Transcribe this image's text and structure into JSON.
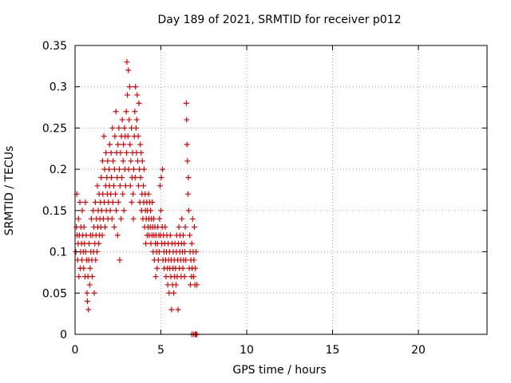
{
  "chart_data": {
    "type": "scatter",
    "title": "Day 189 of 2021, SRMTID for receiver p012",
    "xlabel": "GPS time / hours",
    "ylabel": "SRMTID / TECUs",
    "xlim": [
      0,
      24
    ],
    "ylim": [
      0,
      0.35
    ],
    "xticks": [
      0,
      5,
      10,
      15,
      20
    ],
    "xtick_labels": [
      "0",
      "5",
      "10",
      "15",
      "20"
    ],
    "yticks": [
      0,
      0.05,
      0.1,
      0.15,
      0.2,
      0.25,
      0.3,
      0.35
    ],
    "ytick_labels": [
      "0",
      "0.05",
      "0.1",
      "0.15",
      "0.2",
      "0.25",
      "0.3",
      "0.35"
    ],
    "grid": true,
    "marker": "+",
    "color": "#e00000",
    "series": [
      {
        "name": "SRMTID",
        "points": [
          [
            0.05,
            0.1
          ],
          [
            0.08,
            0.13
          ],
          [
            0.1,
            0.17
          ],
          [
            0.12,
            0.12
          ],
          [
            0.15,
            0.09
          ],
          [
            0.18,
            0.11
          ],
          [
            0.2,
            0.14
          ],
          [
            0.22,
            0.07
          ],
          [
            0.25,
            0.12
          ],
          [
            0.28,
            0.16
          ],
          [
            0.3,
            0.08
          ],
          [
            0.32,
            0.1
          ],
          [
            0.35,
            0.13
          ],
          [
            0.38,
            0.11
          ],
          [
            0.4,
            0.09
          ],
          [
            0.42,
            0.15
          ],
          [
            0.45,
            0.12
          ],
          [
            0.48,
            0.1
          ],
          [
            0.5,
            0.08
          ],
          [
            0.52,
            0.13
          ],
          [
            0.55,
            0.11
          ],
          [
            0.58,
            0.07
          ],
          [
            0.6,
            0.16
          ],
          [
            0.62,
            0.1
          ],
          [
            0.65,
            0.12
          ],
          [
            0.68,
            0.09
          ],
          [
            0.7,
            0.05
          ],
          [
            0.72,
            0.04
          ],
          [
            0.75,
            0.07
          ],
          [
            0.78,
            0.03
          ],
          [
            0.8,
            0.09
          ],
          [
            0.82,
            0.11
          ],
          [
            0.85,
            0.06
          ],
          [
            0.88,
            0.08
          ],
          [
            0.9,
            0.12
          ],
          [
            0.92,
            0.1
          ],
          [
            0.95,
            0.14
          ],
          [
            0.98,
            0.09
          ],
          [
            1.0,
            0.07
          ],
          [
            1.02,
            0.12
          ],
          [
            1.05,
            0.15
          ],
          [
            1.08,
            0.1
          ],
          [
            1.1,
            0.13
          ],
          [
            1.12,
            0.05
          ],
          [
            1.15,
            0.11
          ],
          [
            1.18,
            0.16
          ],
          [
            1.2,
            0.09
          ],
          [
            1.22,
            0.12
          ],
          [
            1.25,
            0.14
          ],
          [
            1.28,
            0.1
          ],
          [
            1.3,
            0.18
          ],
          [
            1.32,
            0.13
          ],
          [
            1.35,
            0.15
          ],
          [
            1.38,
            0.11
          ],
          [
            1.4,
            0.17
          ],
          [
            1.42,
            0.12
          ],
          [
            1.45,
            0.14
          ],
          [
            1.48,
            0.16
          ],
          [
            1.5,
            0.13
          ],
          [
            1.52,
            0.19
          ],
          [
            1.55,
            0.15
          ],
          [
            1.58,
            0.12
          ],
          [
            1.6,
            0.21
          ],
          [
            1.62,
            0.17
          ],
          [
            1.65,
            0.14
          ],
          [
            1.68,
            0.24
          ],
          [
            1.7,
            0.16
          ],
          [
            1.72,
            0.2
          ],
          [
            1.75,
            0.13
          ],
          [
            1.78,
            0.18
          ],
          [
            1.8,
            0.22
          ],
          [
            1.82,
            0.15
          ],
          [
            1.85,
            0.19
          ],
          [
            1.88,
            0.17
          ],
          [
            1.9,
            0.21
          ],
          [
            1.92,
            0.14
          ],
          [
            1.95,
            0.16
          ],
          [
            1.98,
            0.2
          ],
          [
            2.0,
            0.18
          ],
          [
            2.02,
            0.23
          ],
          [
            2.05,
            0.15
          ],
          [
            2.08,
            0.17
          ],
          [
            2.1,
            0.22
          ],
          [
            2.12,
            0.19
          ],
          [
            2.15,
            0.14
          ],
          [
            2.18,
            0.25
          ],
          [
            2.2,
            0.16
          ],
          [
            2.22,
            0.21
          ],
          [
            2.25,
            0.18
          ],
          [
            2.28,
            0.13
          ],
          [
            2.3,
            0.2
          ],
          [
            2.32,
            0.24
          ],
          [
            2.35,
            0.17
          ],
          [
            2.38,
            0.27
          ],
          [
            2.4,
            0.15
          ],
          [
            2.42,
            0.22
          ],
          [
            2.45,
            0.19
          ],
          [
            2.48,
            0.12
          ],
          [
            2.5,
            0.23
          ],
          [
            2.52,
            0.16
          ],
          [
            2.55,
            0.25
          ],
          [
            2.58,
            0.2
          ],
          [
            2.6,
            0.09
          ],
          [
            2.62,
            0.18
          ],
          [
            2.65,
            0.22
          ],
          [
            2.68,
            0.14
          ],
          [
            2.7,
            0.24
          ],
          [
            2.72,
            0.19
          ],
          [
            2.75,
            0.26
          ],
          [
            2.78,
            0.17
          ],
          [
            2.8,
            0.21
          ],
          [
            2.82,
            0.23
          ],
          [
            2.85,
            0.15
          ],
          [
            2.88,
            0.25
          ],
          [
            2.9,
            0.2
          ],
          [
            2.92,
            0.24
          ],
          [
            2.95,
            0.18
          ],
          [
            2.98,
            0.27
          ],
          [
            3.0,
            0.22
          ],
          [
            3.02,
            0.33
          ],
          [
            3.05,
            0.29
          ],
          [
            3.08,
            0.24
          ],
          [
            3.1,
            0.32
          ],
          [
            3.12,
            0.2
          ],
          [
            3.15,
            0.26
          ],
          [
            3.18,
            0.3
          ],
          [
            3.2,
            0.23
          ],
          [
            3.22,
            0.18
          ],
          [
            3.25,
            0.21
          ],
          [
            3.28,
            0.25
          ],
          [
            3.3,
            0.16
          ],
          [
            3.32,
            0.19
          ],
          [
            3.35,
            0.22
          ],
          [
            3.38,
            0.17
          ],
          [
            3.4,
            0.14
          ],
          [
            3.42,
            0.2
          ],
          [
            3.45,
            0.24
          ],
          [
            3.48,
            0.27
          ],
          [
            3.5,
            0.19
          ],
          [
            3.52,
            0.3
          ],
          [
            3.55,
            0.25
          ],
          [
            3.58,
            0.22
          ],
          [
            3.6,
            0.26
          ],
          [
            3.62,
            0.29
          ],
          [
            3.65,
            0.21
          ],
          [
            3.68,
            0.24
          ],
          [
            3.7,
            0.18
          ],
          [
            3.72,
            0.28
          ],
          [
            3.75,
            0.2
          ],
          [
            3.78,
            0.16
          ],
          [
            3.8,
            0.23
          ],
          [
            3.82,
            0.19
          ],
          [
            3.85,
            0.22
          ],
          [
            3.88,
            0.15
          ],
          [
            3.9,
            0.17
          ],
          [
            3.92,
            0.21
          ],
          [
            3.95,
            0.14
          ],
          [
            3.98,
            0.18
          ],
          [
            4.0,
            0.16
          ],
          [
            4.02,
            0.2
          ],
          [
            4.05,
            0.13
          ],
          [
            4.08,
            0.17
          ],
          [
            4.1,
            0.15
          ],
          [
            4.12,
            0.11
          ],
          [
            4.15,
            0.14
          ],
          [
            4.18,
            0.16
          ],
          [
            4.2,
            0.12
          ],
          [
            4.22,
            0.15
          ],
          [
            4.25,
            0.13
          ],
          [
            4.28,
            0.17
          ],
          [
            4.3,
            0.14
          ],
          [
            4.32,
            0.12
          ],
          [
            4.35,
            0.16
          ],
          [
            4.38,
            0.13
          ],
          [
            4.4,
            0.15
          ],
          [
            4.42,
            0.11
          ],
          [
            4.45,
            0.14
          ],
          [
            4.48,
            0.12
          ],
          [
            4.5,
            0.16
          ],
          [
            4.52,
            0.13
          ],
          [
            4.55,
            0.1
          ],
          [
            4.58,
            0.14
          ],
          [
            4.6,
            0.12
          ],
          [
            4.62,
            0.09
          ],
          [
            4.65,
            0.13
          ],
          [
            4.68,
            0.11
          ],
          [
            4.7,
            0.07
          ],
          [
            4.72,
            0.12
          ],
          [
            4.75,
            0.1
          ],
          [
            4.78,
            0.08
          ],
          [
            4.8,
            0.11
          ],
          [
            4.82,
            0.13
          ],
          [
            4.85,
            0.09
          ],
          [
            4.88,
            0.12
          ],
          [
            4.9,
            0.1
          ],
          [
            4.92,
            0.14
          ],
          [
            4.95,
            0.18
          ],
          [
            4.98,
            0.12
          ],
          [
            5.0,
            0.15
          ],
          [
            5.02,
            0.19
          ],
          [
            5.05,
            0.11
          ],
          [
            5.08,
            0.13
          ],
          [
            5.1,
            0.2
          ],
          [
            5.12,
            0.09
          ],
          [
            5.15,
            0.12
          ],
          [
            5.18,
            0.1
          ],
          [
            5.2,
            0.08
          ],
          [
            5.22,
            0.11
          ],
          [
            5.25,
            0.13
          ],
          [
            5.28,
            0.09
          ],
          [
            5.3,
            0.07
          ],
          [
            5.32,
            0.1
          ],
          [
            5.35,
            0.12
          ],
          [
            5.38,
            0.08
          ],
          [
            5.4,
            0.06
          ],
          [
            5.42,
            0.11
          ],
          [
            5.45,
            0.09
          ],
          [
            5.48,
            0.05
          ],
          [
            5.5,
            0.1
          ],
          [
            5.52,
            0.08
          ],
          [
            5.55,
            0.12
          ],
          [
            5.58,
            0.07
          ],
          [
            5.6,
            0.09
          ],
          [
            5.62,
            0.03
          ],
          [
            5.65,
            0.11
          ],
          [
            5.68,
            0.06
          ],
          [
            5.7,
            0.08
          ],
          [
            5.72,
            0.1
          ],
          [
            5.75,
            0.05
          ],
          [
            5.78,
            0.09
          ],
          [
            5.8,
            0.07
          ],
          [
            5.82,
            0.11
          ],
          [
            5.85,
            0.08
          ],
          [
            5.88,
            0.06
          ],
          [
            5.9,
            0.1
          ],
          [
            5.92,
            0.12
          ],
          [
            5.95,
            0.07
          ],
          [
            5.98,
            0.09
          ],
          [
            6.0,
            0.03
          ],
          [
            6.02,
            0.11
          ],
          [
            6.05,
            0.13
          ],
          [
            6.08,
            0.08
          ],
          [
            6.1,
            0.1
          ],
          [
            6.12,
            0.12
          ],
          [
            6.15,
            0.09
          ],
          [
            6.18,
            0.07
          ],
          [
            6.2,
            0.11
          ],
          [
            6.22,
            0.14
          ],
          [
            6.25,
            0.1
          ],
          [
            6.28,
            0.08
          ],
          [
            6.3,
            0.12
          ],
          [
            6.32,
            0.09
          ],
          [
            6.35,
            0.11
          ],
          [
            6.38,
            0.07
          ],
          [
            6.4,
            0.1
          ],
          [
            6.42,
            0.13
          ],
          [
            6.45,
            0.09
          ],
          [
            6.48,
            0.28
          ],
          [
            6.5,
            0.26
          ],
          [
            6.52,
            0.23
          ],
          [
            6.55,
            0.21
          ],
          [
            6.58,
            0.17
          ],
          [
            6.6,
            0.19
          ],
          [
            6.62,
            0.15
          ],
          [
            6.65,
            0.08
          ],
          [
            6.68,
            0.12
          ],
          [
            6.7,
            0.1
          ],
          [
            6.72,
            0.06
          ],
          [
            6.75,
            0.09
          ],
          [
            6.78,
            0.07
          ],
          [
            6.8,
            0.11
          ],
          [
            6.82,
            0.08
          ],
          [
            6.85,
            0.14
          ],
          [
            6.88,
            0.1
          ],
          [
            6.9,
            0.07
          ],
          [
            6.92,
            0.09
          ],
          [
            6.95,
            0.13
          ],
          [
            6.98,
            0.06
          ],
          [
            7.0,
            0.08
          ],
          [
            7.05,
            0.1
          ],
          [
            7.1,
            0.06
          ],
          [
            6.8,
            0.0
          ],
          [
            6.9,
            0.0
          ],
          [
            7.0,
            0.0
          ],
          [
            7.05,
            0.0
          ],
          [
            7.1,
            0.0
          ]
        ]
      }
    ]
  }
}
